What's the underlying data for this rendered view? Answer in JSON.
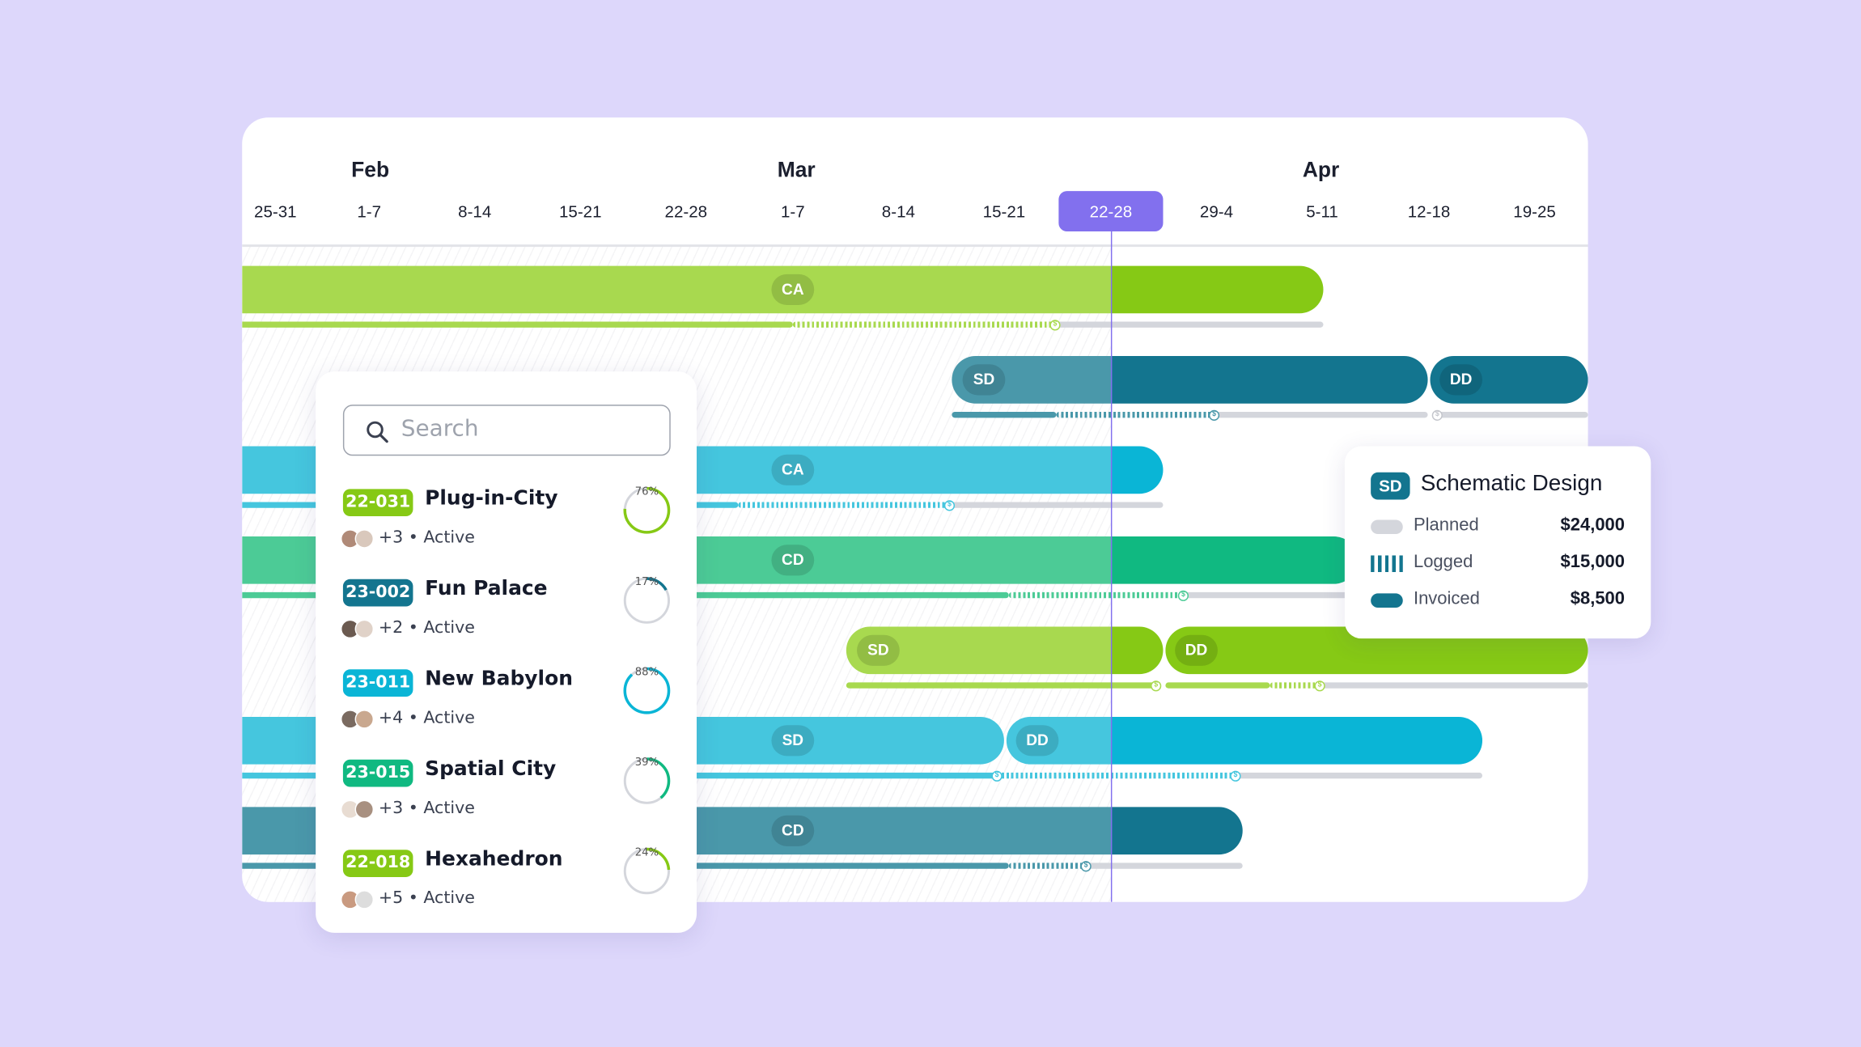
{
  "timeline": {
    "months": [
      "Feb",
      "Mar",
      "Apr"
    ],
    "weeks": [
      "25-31",
      "1-7",
      "8-14",
      "15-21",
      "22-28",
      "1-7",
      "8-14",
      "15-21",
      "22-28",
      "29-4",
      "5-11",
      "12-18",
      "19-25"
    ],
    "current_week_index": 8,
    "rows": [
      {
        "phases": [
          "CA"
        ],
        "color": "#86c915"
      },
      {
        "phases": [
          "SD",
          "DD"
        ],
        "color": "#13758f"
      },
      {
        "phases": [
          "CA"
        ],
        "color": "#0ab5d6"
      },
      {
        "phases": [
          "CD"
        ],
        "color": "#10b981"
      },
      {
        "phases": [
          "SD",
          "DD"
        ],
        "color": "#86c915"
      },
      {
        "phases": [
          "SD",
          "DD"
        ],
        "color": "#0ab5d6"
      },
      {
        "phases": [
          "CD"
        ],
        "color": "#13758f"
      }
    ]
  },
  "search": {
    "placeholder": "Search",
    "value": ""
  },
  "projects": [
    {
      "code": "22-031",
      "name": "Plug-in-City",
      "members": "+3",
      "status": "Active",
      "progress": 76,
      "progress_label": "76%",
      "color": "#86c915"
    },
    {
      "code": "23-002",
      "name": "Fun Palace",
      "members": "+2",
      "status": "Active",
      "progress": 17,
      "progress_label": "17%",
      "color": "#13758f"
    },
    {
      "code": "23-011",
      "name": "New Babylon",
      "members": "+4",
      "status": "Active",
      "progress": 88,
      "progress_label": "88%",
      "color": "#0ab5d6"
    },
    {
      "code": "23-015",
      "name": "Spatial City",
      "members": "+3",
      "status": "Active",
      "progress": 39,
      "progress_label": "39%",
      "color": "#10b981"
    },
    {
      "code": "22-018",
      "name": "Hexahedron",
      "members": "+5",
      "status": "Active",
      "progress": 24,
      "progress_label": "24%",
      "color": "#86c915"
    }
  ],
  "tooltip": {
    "badge": "SD",
    "title": "Schematic Design",
    "rows": [
      {
        "label": "Planned",
        "value": "$24,000",
        "swatch": "planned"
      },
      {
        "label": "Logged",
        "value": "$15,000",
        "swatch": "logged"
      },
      {
        "label": "Invoiced",
        "value": "$8,500",
        "swatch": "invoiced"
      }
    ],
    "colors": {
      "planned": "#d4d6dc",
      "logged": "#13758f",
      "invoiced": "#13758f"
    }
  },
  "colors": {
    "accent": "#8270ee",
    "grey": "#d4d6dc"
  }
}
